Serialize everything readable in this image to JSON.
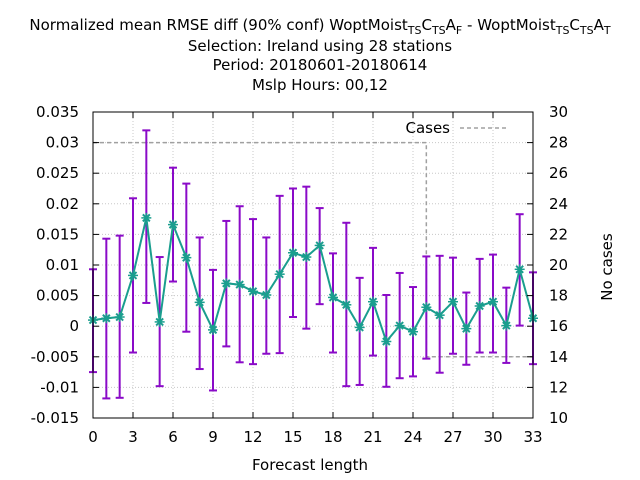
{
  "chart_data": {
    "type": "line",
    "title_lines": [
      "Normalized mean RMSE diff (90% conf) WoptMoist_{TS}C_{TS}A_{F} - WoptMoist_{TS}C_{TS}A_{T}",
      "Selection: Ireland using    28 stations",
      "Period: 20180601-20180614",
      "Mslp   Hours:  00,12"
    ],
    "xlabel": "Forecast length",
    "ylabel": "",
    "y2label": "No cases",
    "xlim": [
      0,
      33
    ],
    "ylim": [
      -0.015,
      0.035
    ],
    "y2lim": [
      10,
      30
    ],
    "xticks": [
      "0",
      "3",
      "6",
      "9",
      "12",
      "15",
      "18",
      "21",
      "24",
      "27",
      "30",
      "33"
    ],
    "yticks": [
      "-0.015",
      "-0.01",
      "-0.005",
      "0",
      "0.005",
      "0.01",
      "0.015",
      "0.02",
      "0.025",
      "0.03",
      "0.035"
    ],
    "y2ticks": [
      "10",
      "12",
      "14",
      "16",
      "18",
      "20",
      "22",
      "24",
      "26",
      "28",
      "30"
    ],
    "grid": true,
    "legend_position": "top-right",
    "colors": {
      "mean_line": "#1a9e8e",
      "error_bars": "#8a0ac8",
      "cases": "#a0a0a0",
      "grid": "#c8c8c8"
    },
    "series": [
      {
        "x": [
          0,
          1,
          2,
          3,
          4,
          5,
          6,
          7,
          8,
          9,
          10,
          11,
          12,
          13,
          14,
          15,
          16,
          17,
          18,
          19,
          20,
          21,
          22,
          23,
          24,
          25,
          26,
          27,
          28,
          29,
          30,
          31,
          32,
          33
        ],
        "values": [
          0.001,
          0.0013,
          0.0015,
          0.0083,
          0.0177,
          0.0007,
          0.0166,
          0.0112,
          0.0039,
          -0.0006,
          0.007,
          0.0068,
          0.0057,
          0.0051,
          0.0085,
          0.012,
          0.0113,
          0.0132,
          0.0047,
          0.0035,
          -0.0002,
          0.004,
          -0.0025,
          0.0001,
          -0.0009,
          0.0031,
          0.0018,
          0.004,
          -0.0004,
          0.0033,
          0.004,
          0.0001,
          0.0093,
          0.0013
        ],
        "error_low": [
          -0.0075,
          -0.0118,
          -0.0117,
          -0.0043,
          0.0038,
          -0.0098,
          0.0073,
          -0.0009,
          -0.007,
          -0.0105,
          -0.0033,
          -0.0059,
          -0.0062,
          -0.0045,
          -0.0044,
          0.0015,
          -0.0004,
          0.0036,
          -0.0043,
          -0.0098,
          -0.0096,
          -0.0048,
          -0.0099,
          -0.0085,
          -0.0082,
          -0.0053,
          -0.0076,
          -0.0045,
          -0.0063,
          -0.0043,
          -0.0043,
          -0.006,
          0.0001,
          -0.0062
        ],
        "error_high": [
          0.0093,
          0.0143,
          0.0148,
          0.0209,
          0.032,
          0.0113,
          0.0259,
          0.0233,
          0.0145,
          0.0092,
          0.0172,
          0.0196,
          0.0175,
          0.0145,
          0.0213,
          0.0225,
          0.0228,
          0.0193,
          0.0119,
          0.0169,
          0.0079,
          0.0128,
          0.0051,
          0.0087,
          0.0064,
          0.0114,
          0.0115,
          0.0112,
          0.0055,
          0.011,
          0.0117,
          0.0063,
          0.0183,
          0.0088
        ]
      },
      {
        "name": "Cases",
        "axis": "y2",
        "x": [
          0,
          1,
          2,
          3,
          4,
          5,
          6,
          7,
          8,
          9,
          10,
          11,
          12,
          13,
          14,
          15,
          16,
          17,
          18,
          19,
          20,
          21,
          22,
          23,
          24,
          25,
          26,
          27,
          28,
          29,
          30,
          31,
          32,
          33
        ],
        "values": [
          28,
          28,
          28,
          28,
          28,
          28,
          28,
          28,
          28,
          28,
          28,
          28,
          28,
          28,
          28,
          28,
          28,
          28,
          28,
          28,
          28,
          28,
          28,
          28,
          28,
          14,
          14,
          14,
          14,
          14,
          14,
          14,
          14,
          14
        ]
      }
    ]
  }
}
